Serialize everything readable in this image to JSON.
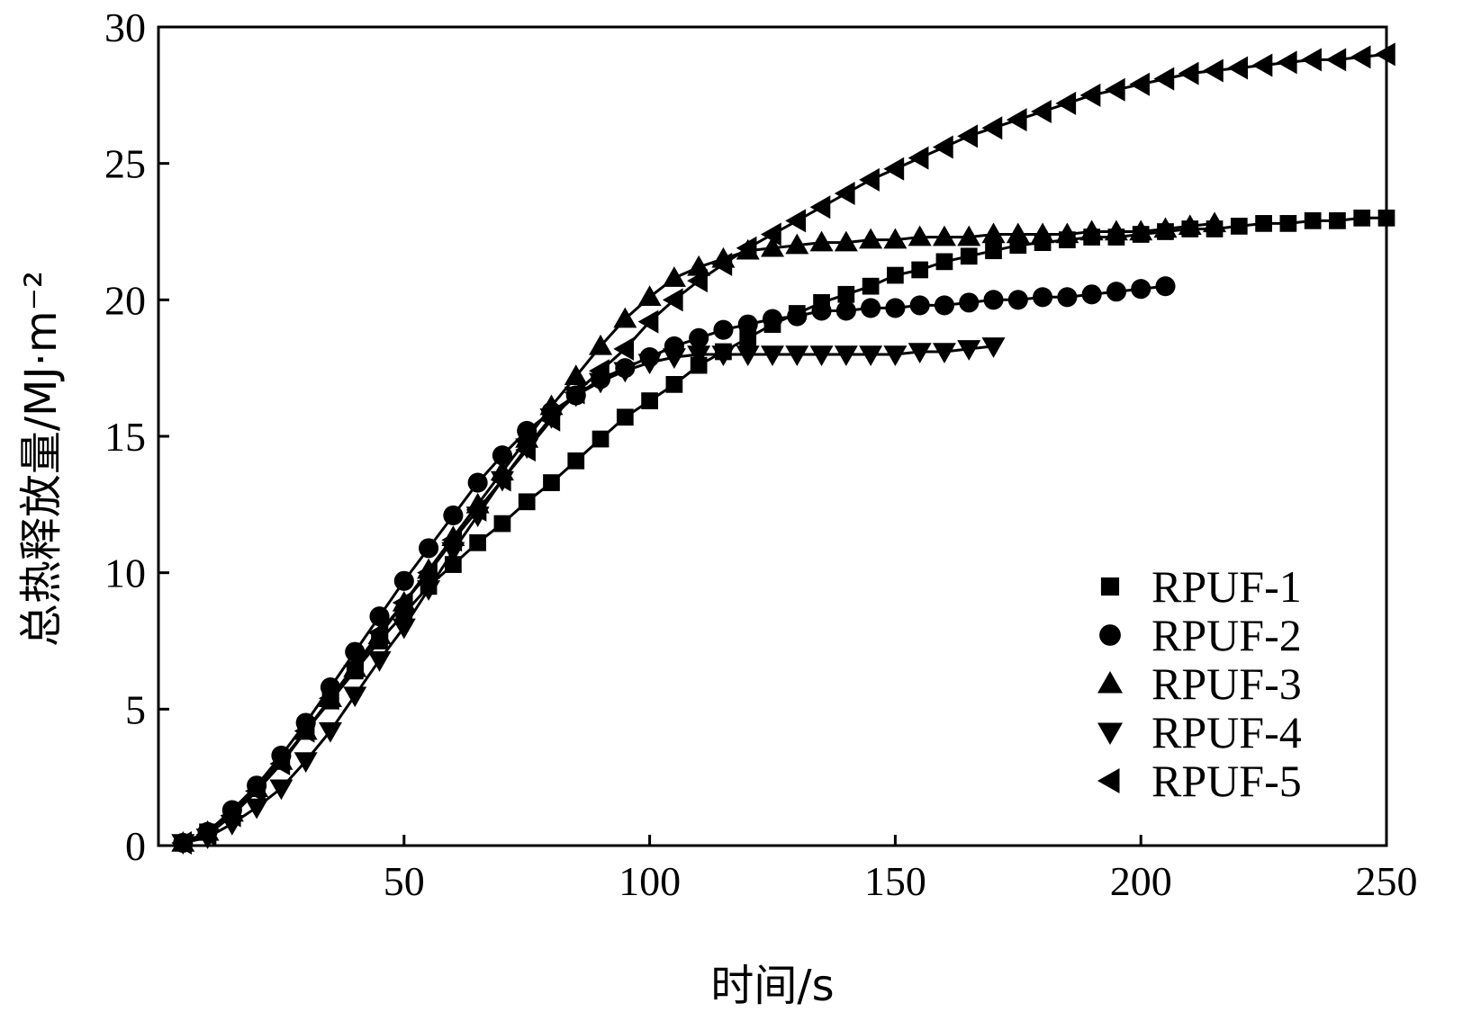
{
  "chart_data": {
    "type": "line",
    "xlabel": "时间/s",
    "ylabel": "总热释放量/MJ·m⁻²",
    "xlim": [
      0,
      250
    ],
    "ylim": [
      0,
      30
    ],
    "xticks": [
      50,
      100,
      150,
      200,
      250
    ],
    "yticks": [
      0,
      5,
      10,
      15,
      20,
      25,
      30
    ],
    "grid": false,
    "legend_position": "bottom-right",
    "series": [
      {
        "name": "RPUF-1",
        "marker": "square",
        "x": [
          5,
          10,
          15,
          20,
          25,
          30,
          35,
          40,
          45,
          50,
          55,
          60,
          65,
          70,
          75,
          80,
          85,
          90,
          95,
          100,
          105,
          110,
          115,
          120,
          125,
          130,
          135,
          140,
          145,
          150,
          155,
          160,
          165,
          170,
          175,
          180,
          185,
          190,
          195,
          200,
          205,
          210,
          215,
          220,
          225,
          230,
          235,
          240,
          245,
          250
        ],
        "y": [
          0.1,
          0.5,
          1.2,
          2.1,
          3.1,
          4.2,
          5.3,
          6.4,
          7.5,
          8.5,
          9.5,
          10.3,
          11.1,
          11.8,
          12.6,
          13.3,
          14.1,
          14.9,
          15.7,
          16.3,
          16.9,
          17.6,
          18.1,
          18.6,
          19.1,
          19.5,
          19.9,
          20.2,
          20.5,
          20.9,
          21.1,
          21.4,
          21.6,
          21.8,
          22.0,
          22.1,
          22.2,
          22.3,
          22.3,
          22.4,
          22.5,
          22.6,
          22.6,
          22.7,
          22.8,
          22.8,
          22.9,
          22.9,
          23.0,
          23.0
        ]
      },
      {
        "name": "RPUF-2",
        "marker": "circle",
        "x": [
          5,
          10,
          15,
          20,
          25,
          30,
          35,
          40,
          45,
          50,
          55,
          60,
          65,
          70,
          75,
          80,
          85,
          90,
          95,
          100,
          105,
          110,
          115,
          120,
          125,
          130,
          135,
          140,
          145,
          150,
          155,
          160,
          165,
          170,
          175,
          180,
          185,
          190,
          195,
          200,
          205
        ],
        "y": [
          0.1,
          0.5,
          1.3,
          2.2,
          3.3,
          4.5,
          5.8,
          7.1,
          8.4,
          9.7,
          10.9,
          12.1,
          13.3,
          14.3,
          15.2,
          15.9,
          16.5,
          17.1,
          17.5,
          17.9,
          18.3,
          18.6,
          18.9,
          19.1,
          19.3,
          19.4,
          19.6,
          19.6,
          19.7,
          19.7,
          19.8,
          19.8,
          19.9,
          20.0,
          20.0,
          20.1,
          20.1,
          20.2,
          20.3,
          20.4,
          20.5
        ]
      },
      {
        "name": "RPUF-3",
        "marker": "triangle-up",
        "x": [
          5,
          10,
          15,
          20,
          25,
          30,
          35,
          40,
          45,
          50,
          55,
          60,
          65,
          70,
          75,
          80,
          85,
          90,
          95,
          100,
          105,
          110,
          115,
          120,
          125,
          130,
          135,
          140,
          145,
          150,
          155,
          160,
          165,
          170,
          175,
          180,
          185,
          190,
          195,
          200,
          205,
          210,
          215
        ],
        "y": [
          0.1,
          0.5,
          1.2,
          2.1,
          3.1,
          4.2,
          5.4,
          6.5,
          7.7,
          8.9,
          10.1,
          11.3,
          12.5,
          13.7,
          14.9,
          16.1,
          17.2,
          18.3,
          19.3,
          20.1,
          20.8,
          21.2,
          21.5,
          21.8,
          21.9,
          22.0,
          22.1,
          22.1,
          22.2,
          22.2,
          22.3,
          22.3,
          22.3,
          22.4,
          22.4,
          22.4,
          22.4,
          22.5,
          22.5,
          22.5,
          22.6,
          22.7,
          22.8
        ]
      },
      {
        "name": "RPUF-4",
        "marker": "triangle-down",
        "x": [
          5,
          10,
          15,
          20,
          25,
          30,
          35,
          40,
          45,
          50,
          55,
          60,
          65,
          70,
          75,
          80,
          85,
          90,
          95,
          100,
          105,
          110,
          115,
          120,
          125,
          130,
          135,
          140,
          145,
          150,
          155,
          160,
          165,
          170
        ],
        "y": [
          0.1,
          0.3,
          0.8,
          1.4,
          2.1,
          3.1,
          4.2,
          5.5,
          6.8,
          8.0,
          9.4,
          10.8,
          12.1,
          13.4,
          14.6,
          15.7,
          16.5,
          17.0,
          17.4,
          17.7,
          17.9,
          18.0,
          18.0,
          18.0,
          18.0,
          18.0,
          18.0,
          18.0,
          18.0,
          18.0,
          18.1,
          18.1,
          18.2,
          18.3
        ]
      },
      {
        "name": "RPUF-5",
        "marker": "triangle-left",
        "x": [
          5,
          10,
          15,
          20,
          25,
          30,
          35,
          40,
          45,
          50,
          55,
          60,
          65,
          70,
          75,
          80,
          85,
          90,
          95,
          100,
          105,
          110,
          115,
          120,
          125,
          130,
          135,
          140,
          145,
          150,
          155,
          160,
          165,
          170,
          175,
          180,
          185,
          190,
          195,
          200,
          205,
          210,
          215,
          220,
          225,
          230,
          235,
          240,
          245,
          250
        ],
        "y": [
          0.1,
          0.4,
          1.1,
          2.0,
          3.0,
          4.2,
          5.4,
          6.6,
          7.8,
          8.9,
          10.0,
          11.2,
          12.3,
          13.4,
          14.5,
          15.6,
          16.6,
          17.4,
          18.2,
          19.2,
          20.0,
          20.7,
          21.3,
          21.9,
          22.4,
          22.9,
          23.4,
          23.9,
          24.4,
          24.8,
          25.2,
          25.6,
          26.0,
          26.3,
          26.6,
          26.9,
          27.2,
          27.5,
          27.7,
          27.9,
          28.1,
          28.3,
          28.4,
          28.5,
          28.6,
          28.7,
          28.8,
          28.8,
          28.9,
          29.0
        ]
      }
    ]
  }
}
